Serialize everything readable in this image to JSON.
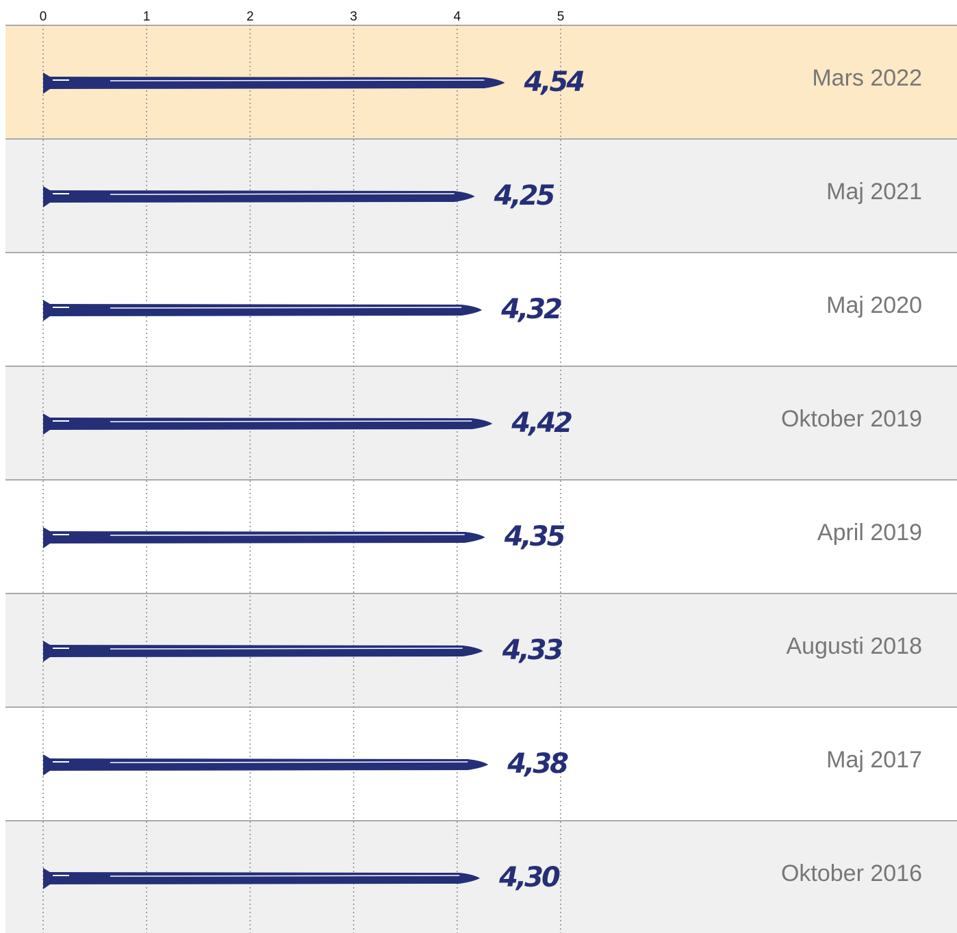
{
  "chart_data": {
    "type": "bar",
    "categories": [
      "Mars 2022",
      "Maj 2021",
      "Maj 2020",
      "Oktober 2019",
      "April 2019",
      "Augusti 2018",
      "Maj 2017",
      "Oktober 2016"
    ],
    "values": [
      4.54,
      4.25,
      4.32,
      4.42,
      4.35,
      4.33,
      4.38,
      4.3
    ],
    "value_labels": [
      "4,54",
      "4,25",
      "4,32",
      "4,42",
      "4,35",
      "4,33",
      "4,38",
      "4,30"
    ],
    "color": "#252f78",
    "xlim": [
      0,
      5
    ],
    "xticks": [
      0,
      1,
      2,
      3,
      4,
      5
    ],
    "grid": true
  }
}
